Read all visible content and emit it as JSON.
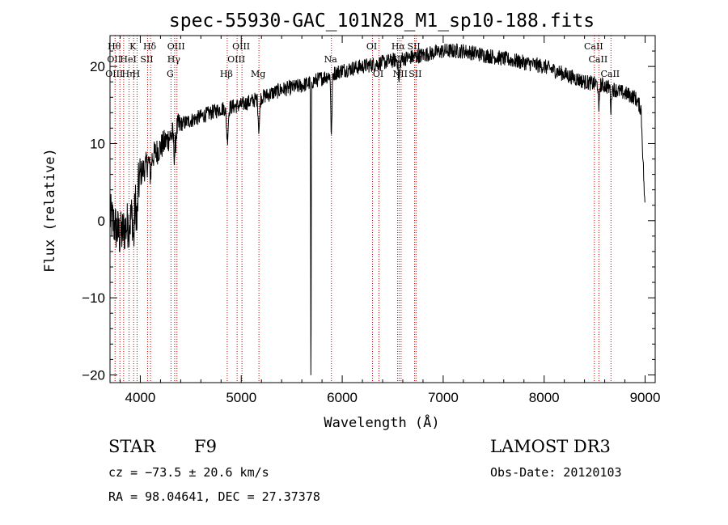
{
  "chart_data": {
    "type": "line",
    "title": "spec-55930-GAC_101N28_M1_sp10-188.fits",
    "xlabel": "Wavelength (Å)",
    "ylabel": "Flux (relative)",
    "xlim": [
      3700,
      9100
    ],
    "ylim": [
      -21,
      24
    ],
    "xticks": [
      4000,
      5000,
      6000,
      7000,
      8000,
      9000
    ],
    "yticks": [
      -20,
      -10,
      0,
      10,
      20
    ],
    "tick_labels_x": [
      "4000",
      "5000",
      "6000",
      "7000",
      "8000",
      "9000"
    ],
    "tick_labels_y": [
      "−20",
      "−10",
      "0",
      "10",
      "20"
    ],
    "continuum_anchors": {
      "x": [
        3700,
        3760,
        3800,
        3850,
        3900,
        3950,
        4000,
        4100,
        4200,
        4300,
        4400,
        4600,
        4800,
        5000,
        5200,
        5400,
        5600,
        5800,
        6000,
        6200,
        6400,
        6600,
        6800,
        7000,
        7200,
        7400,
        7600,
        7800,
        8000,
        8200,
        8400,
        8600,
        8800,
        8900,
        8960,
        9000
      ],
      "y": [
        0.5,
        -1,
        -2,
        -1,
        0,
        2,
        6,
        8,
        9.5,
        11,
        12.5,
        13.5,
        14.5,
        15,
        16,
        17,
        17.5,
        18.5,
        19.5,
        20,
        20.5,
        21,
        21.5,
        22,
        22,
        21.5,
        21,
        20.5,
        20,
        19,
        18,
        17.5,
        16.5,
        16,
        14.5,
        1
      ]
    },
    "absorption_features": [
      {
        "center": 5690,
        "depth": 41,
        "width": 4
      },
      {
        "center": 5893,
        "depth": 8,
        "width": 8
      },
      {
        "center": 5175,
        "depth": 4,
        "width": 10
      },
      {
        "center": 4862,
        "depth": 4,
        "width": 12
      },
      {
        "center": 4340,
        "depth": 3,
        "width": 12
      },
      {
        "center": 4101,
        "depth": 2,
        "width": 10
      },
      {
        "center": 3968,
        "depth": 4,
        "width": 8
      },
      {
        "center": 3934,
        "depth": 4,
        "width": 8
      },
      {
        "center": 6563,
        "depth": 3,
        "width": 10
      },
      {
        "center": 8542,
        "depth": 4,
        "width": 6
      },
      {
        "center": 8662,
        "depth": 3,
        "width": 6
      }
    ],
    "lines": [
      {
        "x": 3750,
        "labels": [
          "Hθ",
          "OII",
          "OIII"
        ]
      },
      {
        "x": 3798,
        "labels": [
          null,
          null,
          null
        ]
      },
      {
        "x": 3835,
        "labels": [
          null,
          null,
          null
        ]
      },
      {
        "x": 3889,
        "labels": [
          null,
          "HeI",
          "Hη"
        ]
      },
      {
        "x": 3934,
        "labels": [
          "K",
          null,
          null
        ]
      },
      {
        "x": 3968,
        "labels": [
          null,
          null,
          "H"
        ]
      },
      {
        "x": 4072,
        "labels": [
          null,
          "SII",
          null
        ]
      },
      {
        "x": 4101,
        "labels": [
          "Hδ",
          null,
          null
        ]
      },
      {
        "x": 4304,
        "labels": [
          null,
          null,
          "G"
        ]
      },
      {
        "x": 4340,
        "labels": [
          null,
          "Hγ",
          null
        ]
      },
      {
        "x": 4363,
        "labels": [
          "OIII",
          null,
          null
        ]
      },
      {
        "x": 4861,
        "labels": [
          null,
          null,
          "Hβ"
        ]
      },
      {
        "x": 4959,
        "labels": [
          null,
          "OIII",
          null
        ]
      },
      {
        "x": 5007,
        "labels": [
          "OIII",
          null,
          null
        ]
      },
      {
        "x": 5175,
        "labels": [
          null,
          null,
          "Mg"
        ]
      },
      {
        "x": 5893,
        "labels": [
          null,
          "Na",
          null
        ]
      },
      {
        "x": 6300,
        "labels": [
          "OI",
          null,
          null
        ]
      },
      {
        "x": 6364,
        "labels": [
          null,
          null,
          "OI"
        ]
      },
      {
        "x": 6548,
        "labels": [
          null,
          "NII",
          null
        ]
      },
      {
        "x": 6563,
        "labels": [
          "Hα",
          null,
          null
        ]
      },
      {
        "x": 6583,
        "labels": [
          null,
          null,
          "NII"
        ]
      },
      {
        "x": 6717,
        "labels": [
          "SII",
          null,
          null
        ]
      },
      {
        "x": 6731,
        "labels": [
          null,
          "SII",
          "SII"
        ]
      },
      {
        "x": 8498,
        "labels": [
          "CaII",
          null,
          null
        ]
      },
      {
        "x": 8542,
        "labels": [
          null,
          "CaII",
          null
        ]
      },
      {
        "x": 8662,
        "labels": [
          null,
          null,
          "CaII"
        ]
      }
    ]
  },
  "info": {
    "class": "STAR",
    "subclass": "F9",
    "survey": "LAMOST DR3",
    "redshift": "cz = −73.5 ± 20.6 km/s",
    "obs_date": "Obs-Date: 20120103",
    "coords": "RA =  98.04641, DEC =  27.37378"
  }
}
